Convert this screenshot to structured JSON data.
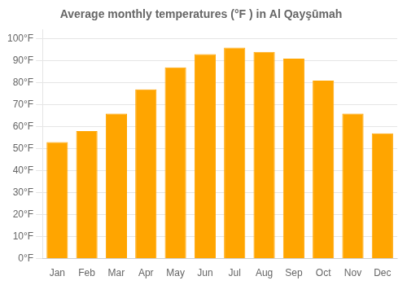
{
  "chart_data": {
    "type": "bar",
    "title": "Average monthly temperatures (°F ) in Al Qayşūmah",
    "categories": [
      "Jan",
      "Feb",
      "Mar",
      "Apr",
      "May",
      "Jun",
      "Jul",
      "Aug",
      "Sep",
      "Oct",
      "Nov",
      "Dec"
    ],
    "values": [
      53,
      58,
      66,
      77,
      87,
      93,
      96,
      94,
      91,
      81,
      66,
      57
    ],
    "color": "#FFA500",
    "ylim": [
      0,
      104
    ],
    "yticks": [
      {
        "value": 0,
        "label": "0°F"
      },
      {
        "value": 10,
        "label": "10°F"
      },
      {
        "value": 20,
        "label": "20°F"
      },
      {
        "value": 30,
        "label": "30°F"
      },
      {
        "value": 40,
        "label": "40°F"
      },
      {
        "value": 50,
        "label": "50°F"
      },
      {
        "value": 60,
        "label": "60°F"
      },
      {
        "value": 70,
        "label": "70°F"
      },
      {
        "value": 80,
        "label": "80°F"
      },
      {
        "value": 90,
        "label": "90°F"
      },
      {
        "value": 100,
        "label": "100°F"
      }
    ],
    "grid": true
  }
}
